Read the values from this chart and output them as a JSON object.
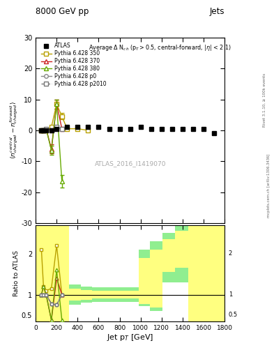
{
  "title": "8000 GeV pp",
  "title_right": "Jets",
  "annotation": "Average Δ N$_{ch}$ (p$_T$>0.5, central-forward, |η| < 2.1)",
  "watermark": "ATLAS_2016_I1419070",
  "ylabel_main": "⟨ n$^{central}_{charged}$ − n$^{forward}_{charged}$ ⟩",
  "ylabel_ratio": "Ratio to ATLAS",
  "xlabel": "Jet p$_T$ [GeV]",
  "ylim_main": [
    -30,
    30
  ],
  "ylim_ratio": [
    0.35,
    2.7
  ],
  "xlim": [
    0,
    1800
  ],
  "atlas_x": [
    55,
    75,
    100,
    150,
    200,
    300,
    400,
    500,
    600,
    700,
    800,
    900,
    1000,
    1100,
    1200,
    1300,
    1400,
    1500,
    1600,
    1700
  ],
  "atlas_y": [
    0.0,
    0.0,
    0.0,
    0.0,
    0.5,
    1.0,
    1.0,
    1.0,
    1.0,
    0.5,
    0.5,
    0.5,
    1.0,
    0.5,
    0.5,
    0.5,
    0.5,
    0.5,
    0.5,
    -1.0
  ],
  "py350_x": [
    55,
    75,
    100,
    150,
    200,
    250,
    300,
    400,
    500
  ],
  "py350_y": [
    0.0,
    0.0,
    0.0,
    1.0,
    8.5,
    4.5,
    0.5,
    0.5,
    0.0
  ],
  "py350_yerr": [
    0.2,
    0.2,
    0.2,
    0.5,
    1.5,
    1.0,
    0.3,
    0.3,
    0.2
  ],
  "py370_x": [
    55,
    75,
    100,
    150,
    200,
    250
  ],
  "py370_y": [
    0.0,
    0.0,
    0.5,
    -6.0,
    8.5,
    0.5
  ],
  "py370_yerr": [
    0.2,
    0.2,
    0.3,
    1.5,
    1.5,
    0.5
  ],
  "py380_x": [
    55,
    75,
    100,
    150,
    200,
    250
  ],
  "py380_y": [
    0.0,
    0.0,
    0.5,
    -6.5,
    8.5,
    -16.5
  ],
  "py380_yerr": [
    0.2,
    0.2,
    0.3,
    1.5,
    1.5,
    2.0
  ],
  "py_p0_x": [
    55,
    75,
    100,
    150,
    200,
    250
  ],
  "py_p0_y": [
    0.0,
    0.0,
    0.5,
    0.0,
    1.0,
    0.5
  ],
  "py_p0_yerr": [
    0.2,
    0.2,
    0.3,
    0.3,
    0.5,
    0.4
  ],
  "py_p2010_x": [
    55,
    75,
    100,
    150,
    200,
    250
  ],
  "py_p2010_y": [
    0.0,
    0.0,
    0.5,
    0.0,
    1.0,
    0.5
  ],
  "py_p2010_yerr": [
    0.2,
    0.2,
    0.3,
    0.3,
    0.5,
    0.4
  ],
  "color_350": "#b8a000",
  "color_370": "#cc2222",
  "color_380": "#66aa00",
  "color_p0": "#888888",
  "color_p2010": "#777777",
  "color_atlas": "#000000",
  "bg_green": "#90ee90",
  "bg_yellow": "#ffff80",
  "ratio_green_bins": [
    0,
    110,
    210,
    320,
    430,
    540,
    650,
    760,
    870,
    980,
    1090,
    1210,
    1330,
    1450,
    1800
  ],
  "ratio_green_lo": [
    0.35,
    0.35,
    0.35,
    0.75,
    0.8,
    0.82,
    0.82,
    0.82,
    0.82,
    0.72,
    0.6,
    1.3,
    1.3,
    0.35
  ],
  "ratio_green_hi": [
    2.7,
    2.7,
    2.7,
    1.25,
    1.2,
    1.18,
    1.18,
    1.18,
    1.18,
    2.1,
    2.3,
    2.5,
    2.7,
    2.7
  ],
  "ratio_yellow_bins": [
    0,
    110,
    210,
    320,
    430,
    540,
    650,
    760,
    870,
    980,
    1090,
    1210,
    1330,
    1450,
    1800
  ],
  "ratio_yellow_lo": [
    0.35,
    0.35,
    0.35,
    0.85,
    0.88,
    0.9,
    0.9,
    0.9,
    0.9,
    0.78,
    0.68,
    1.55,
    1.65,
    0.35
  ],
  "ratio_yellow_hi": [
    2.7,
    2.7,
    2.7,
    1.15,
    1.12,
    1.1,
    1.1,
    1.1,
    1.1,
    1.9,
    2.1,
    2.35,
    2.55,
    2.7
  ],
  "ratio_350_x": [
    55,
    75,
    100,
    150,
    200,
    250
  ],
  "ratio_350_y": [
    2.1,
    1.2,
    1.1,
    1.15,
    2.2,
    1.0
  ],
  "ratio_370_x": [
    55,
    75,
    100,
    150,
    200,
    250
  ],
  "ratio_370_y": [
    1.0,
    1.2,
    1.0,
    0.38,
    1.4,
    1.0
  ],
  "ratio_380_x": [
    55,
    75,
    100,
    150,
    200,
    250
  ],
  "ratio_380_y": [
    1.0,
    1.2,
    1.0,
    0.38,
    1.6,
    0.38
  ],
  "ratio_p0_x": [
    55,
    75,
    100,
    150,
    200,
    250
  ],
  "ratio_p0_y": [
    1.0,
    1.0,
    1.0,
    0.78,
    0.75,
    1.0
  ],
  "ratio_p2010_x": [
    55,
    75,
    100,
    150,
    200,
    250
  ],
  "ratio_p2010_y": [
    1.0,
    1.0,
    1.0,
    0.78,
    0.75,
    1.0
  ]
}
